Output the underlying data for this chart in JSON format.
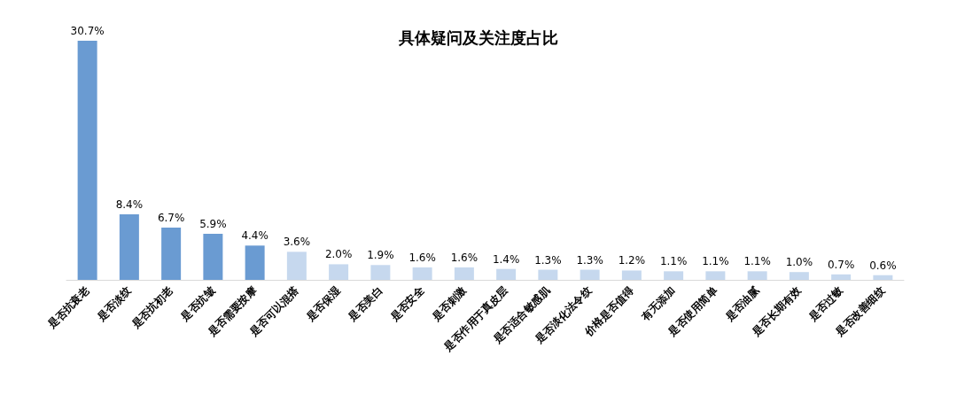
{
  "chart_data": {
    "type": "bar",
    "title": "具体疑问及关注度占比",
    "categories": [
      "是否抗衰老",
      "是否淡纹",
      "是否抗初老",
      "是否抗皱",
      "是否需要按摩",
      "是否可以混搭",
      "是否保湿",
      "是否美白",
      "是否安全",
      "是否刺激",
      "是否作用于真皮层",
      "是否适合敏感肌",
      "是否淡化法令纹",
      "价格是否值得",
      "有无添加",
      "是否使用简单",
      "是否油腻",
      "是否长期有效",
      "是否过敏",
      "是否改善细纹"
    ],
    "values": [
      30.7,
      8.4,
      6.7,
      5.9,
      4.4,
      3.6,
      2.0,
      1.9,
      1.6,
      1.6,
      1.4,
      1.3,
      1.3,
      1.2,
      1.1,
      1.1,
      1.1,
      1.0,
      0.7,
      0.6
    ],
    "value_labels": [
      "30.7%",
      "8.4%",
      "6.7%",
      "5.9%",
      "4.4%",
      "3.6%",
      "2.0%",
      "1.9%",
      "1.6%",
      "1.6%",
      "1.4%",
      "1.3%",
      "1.3%",
      "1.2%",
      "1.1%",
      "1.1%",
      "1.1%",
      "1.0%",
      "0.7%",
      "0.6%"
    ],
    "colors": [
      "#6a9bd2",
      "#6a9bd2",
      "#6a9bd2",
      "#6a9bd2",
      "#6a9bd2",
      "#c6d8ee",
      "#c6d8ee",
      "#c6d8ee",
      "#c6d8ee",
      "#c6d8ee",
      "#c6d8ee",
      "#c6d8ee",
      "#c6d8ee",
      "#c6d8ee",
      "#c6d8ee",
      "#c6d8ee",
      "#c6d8ee",
      "#c6d8ee",
      "#c6d8ee",
      "#c6d8ee"
    ],
    "orientation": "vertical"
  }
}
